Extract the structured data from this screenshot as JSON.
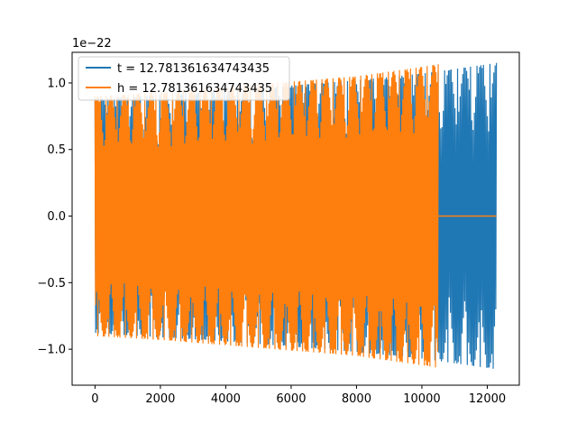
{
  "chart_data": {
    "type": "line",
    "title": "",
    "xlabel": "",
    "ylabel": "",
    "y_offset_label": "1e−22",
    "xlim": [
      -700,
      12980
    ],
    "ylim": [
      -1.27,
      1.23
    ],
    "x_ticks": [
      0,
      2000,
      4000,
      6000,
      8000,
      10000,
      12000
    ],
    "x_tick_labels": [
      "0",
      "2000",
      "4000",
      "6000",
      "8000",
      "10000",
      "12000"
    ],
    "y_ticks": [
      -1.0,
      -0.5,
      0.0,
      0.5,
      1.0
    ],
    "y_tick_labels": [
      "−1.0",
      "−0.5",
      "0.0",
      "0.5",
      "1.0"
    ],
    "grid": false,
    "legend_position": "top-left",
    "series": [
      {
        "name": "t = 12.781361634743435",
        "color": "#1f77b4",
        "envelope": {
          "x": [
            0,
            2000,
            4000,
            6000,
            8000,
            10000,
            12280
          ],
          "upper": [
            0.88,
            0.91,
            0.94,
            0.98,
            1.02,
            1.07,
            1.15
          ],
          "lower": [
            -0.88,
            -0.91,
            -0.94,
            -0.98,
            -1.02,
            -1.07,
            -1.15
          ]
        },
        "x_end": 12280
      },
      {
        "name": "h = 12.781361634743435",
        "color": "#ff7f0e",
        "envelope": {
          "x": [
            0,
            2000,
            4000,
            6000,
            8000,
            10000,
            10500
          ],
          "upper": [
            0.9,
            0.93,
            0.97,
            1.01,
            1.05,
            1.12,
            1.14
          ],
          "lower": [
            -0.9,
            -0.93,
            -0.97,
            -1.01,
            -1.05,
            -1.12,
            -1.14
          ]
        },
        "x_end": 10500,
        "zero_tail": [
          10500,
          12280
        ]
      }
    ]
  }
}
